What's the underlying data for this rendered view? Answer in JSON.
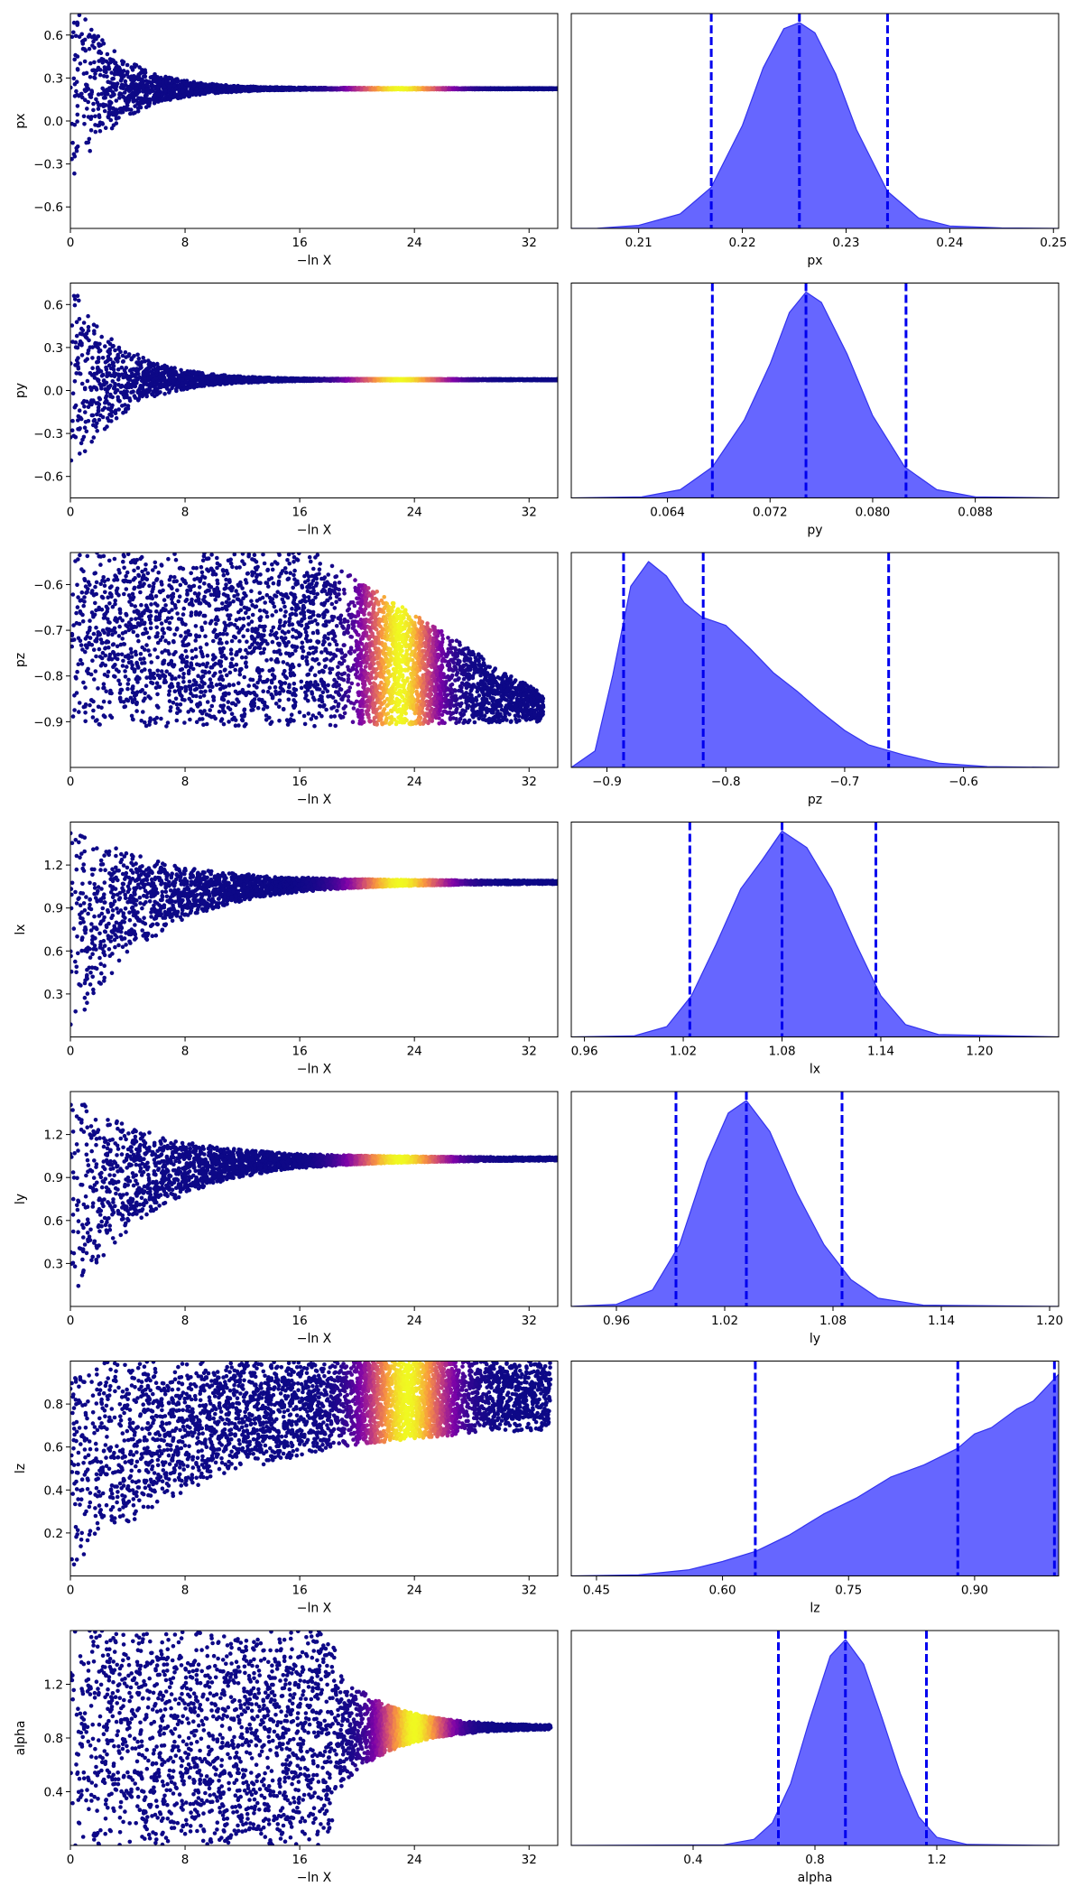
{
  "chart_data": {
    "type": "trace_plot",
    "x_label_trace": "−ln X",
    "x_ticks_trace": [
      0,
      8,
      16,
      24,
      32
    ],
    "x_range_trace": [
      0,
      34
    ],
    "colors": {
      "kde_fill": "#6666ff",
      "kde_line": "#3333ee",
      "quantile_line": "#0000ee",
      "scatter_low": "#0d0887",
      "scatter_high": "#f0f921"
    },
    "panels": [
      {
        "name": "px",
        "trace_ylim": [
          -0.75,
          0.75
        ],
        "trace_yticks": [
          "-0.6",
          "-0.3",
          "0.0",
          "0.3",
          "0.6"
        ],
        "trace_ytick_values": [
          -0.6,
          -0.3,
          0.0,
          0.3,
          0.6
        ],
        "trace_shape": {
          "type": "funnel",
          "final": 0.225,
          "width0": 1.4,
          "rate": 0.32,
          "bright": [
            19,
            27
          ]
        },
        "kde_xlim": [
          0.2035,
          0.2505
        ],
        "kde_xticks": [
          "0.21",
          "0.22",
          "0.23",
          "0.24",
          "0.25"
        ],
        "kde_xtick_values": [
          0.21,
          0.22,
          0.23,
          0.24,
          0.25
        ],
        "kde_points": [
          [
            0.2035,
            0.0
          ],
          [
            0.206,
            0.001
          ],
          [
            0.21,
            0.015
          ],
          [
            0.214,
            0.07
          ],
          [
            0.217,
            0.2
          ],
          [
            0.22,
            0.5
          ],
          [
            0.222,
            0.78
          ],
          [
            0.224,
            0.97
          ],
          [
            0.2255,
            1.0
          ],
          [
            0.227,
            0.95
          ],
          [
            0.229,
            0.75
          ],
          [
            0.231,
            0.48
          ],
          [
            0.234,
            0.18
          ],
          [
            0.237,
            0.05
          ],
          [
            0.24,
            0.012
          ],
          [
            0.245,
            0.002
          ],
          [
            0.2505,
            0.0
          ]
        ],
        "quantiles": [
          0.217,
          0.2255,
          0.234
        ]
      },
      {
        "name": "py",
        "trace_ylim": [
          -0.75,
          0.75
        ],
        "trace_yticks": [
          "-0.6",
          "-0.3",
          "0.0",
          "0.3",
          "0.6"
        ],
        "trace_ytick_values": [
          -0.6,
          -0.3,
          0.0,
          0.3,
          0.6
        ],
        "trace_shape": {
          "type": "funnel",
          "final": 0.075,
          "width0": 1.4,
          "rate": 0.3,
          "bright": [
            19,
            27
          ]
        },
        "kde_xlim": [
          0.0565,
          0.0945
        ],
        "kde_xticks": [
          "0.064",
          "0.072",
          "0.080",
          "0.088"
        ],
        "kde_xtick_values": [
          0.064,
          0.072,
          0.08,
          0.088
        ],
        "kde_points": [
          [
            0.0565,
            0.0
          ],
          [
            0.062,
            0.005
          ],
          [
            0.065,
            0.04
          ],
          [
            0.0675,
            0.15
          ],
          [
            0.07,
            0.38
          ],
          [
            0.072,
            0.65
          ],
          [
            0.0735,
            0.9
          ],
          [
            0.0748,
            1.0
          ],
          [
            0.076,
            0.95
          ],
          [
            0.078,
            0.7
          ],
          [
            0.08,
            0.4
          ],
          [
            0.0825,
            0.15
          ],
          [
            0.085,
            0.04
          ],
          [
            0.088,
            0.005
          ],
          [
            0.0945,
            0.0
          ]
        ],
        "quantiles": [
          0.0675,
          0.0748,
          0.0826
        ]
      },
      {
        "name": "pz",
        "trace_ylim": [
          -1.0,
          -0.53
        ],
        "trace_yticks": [
          "-0.9",
          "-0.8",
          "-0.7",
          "-0.6"
        ],
        "trace_ytick_values": [
          -0.9,
          -0.8,
          -0.7,
          -0.6
        ],
        "trace_shape": {
          "type": "band",
          "lo": -0.91,
          "hi": -0.53,
          "lo_end": -0.9,
          "hi_end": -0.84,
          "cut": 17,
          "end": 33,
          "bright": [
            20,
            26
          ]
        },
        "kde_xlim": [
          -0.93,
          -0.52
        ],
        "kde_xticks": [
          "-0.9",
          "-0.8",
          "-0.7",
          "-0.6"
        ],
        "kde_xtick_values": [
          -0.9,
          -0.8,
          -0.7,
          -0.6
        ],
        "kde_points": [
          [
            -0.93,
            0.0
          ],
          [
            -0.91,
            0.08
          ],
          [
            -0.895,
            0.45
          ],
          [
            -0.88,
            0.88
          ],
          [
            -0.865,
            1.0
          ],
          [
            -0.85,
            0.93
          ],
          [
            -0.835,
            0.8
          ],
          [
            -0.82,
            0.73
          ],
          [
            -0.8,
            0.69
          ],
          [
            -0.78,
            0.58
          ],
          [
            -0.76,
            0.46
          ],
          [
            -0.74,
            0.37
          ],
          [
            -0.72,
            0.27
          ],
          [
            -0.7,
            0.18
          ],
          [
            -0.68,
            0.11
          ],
          [
            -0.65,
            0.06
          ],
          [
            -0.62,
            0.02
          ],
          [
            -0.58,
            0.004
          ],
          [
            -0.52,
            0.0
          ]
        ],
        "quantiles": [
          -0.886,
          -0.819,
          -0.663
        ]
      },
      {
        "name": "lx",
        "trace_ylim": [
          0.0,
          1.5
        ],
        "trace_yticks": [
          "0.3",
          "0.6",
          "0.9",
          "1.2"
        ],
        "trace_ytick_values": [
          0.3,
          0.6,
          0.9,
          1.2
        ],
        "trace_shape": {
          "type": "converge",
          "final": 1.08,
          "hi0": 1.5,
          "lo0": 0.02,
          "rate": 0.18,
          "bright": [
            19,
            27
          ]
        },
        "kde_xlim": [
          0.952,
          1.248
        ],
        "kde_xticks": [
          "0.96",
          "1.02",
          "1.08",
          "1.14",
          "1.20"
        ],
        "kde_xtick_values": [
          0.96,
          1.02,
          1.08,
          1.14,
          1.2
        ],
        "kde_points": [
          [
            0.952,
            0.0
          ],
          [
            0.99,
            0.005
          ],
          [
            1.01,
            0.05
          ],
          [
            1.025,
            0.2
          ],
          [
            1.04,
            0.45
          ],
          [
            1.055,
            0.72
          ],
          [
            1.068,
            0.86
          ],
          [
            1.08,
            1.0
          ],
          [
            1.095,
            0.92
          ],
          [
            1.11,
            0.72
          ],
          [
            1.125,
            0.45
          ],
          [
            1.14,
            0.2
          ],
          [
            1.155,
            0.06
          ],
          [
            1.175,
            0.012
          ],
          [
            1.248,
            0.0
          ]
        ],
        "quantiles": [
          1.024,
          1.08,
          1.137
        ]
      },
      {
        "name": "ly",
        "trace_ylim": [
          0.0,
          1.5
        ],
        "trace_yticks": [
          "0.3",
          "0.6",
          "0.9",
          "1.2"
        ],
        "trace_ytick_values": [
          0.3,
          0.6,
          0.9,
          1.2
        ],
        "trace_shape": {
          "type": "converge",
          "final": 1.03,
          "hi0": 1.5,
          "lo0": 0.02,
          "rate": 0.18,
          "bright": [
            19,
            27
          ]
        },
        "kde_xlim": [
          0.935,
          1.205
        ],
        "kde_xticks": [
          "0.96",
          "1.02",
          "1.08",
          "1.14",
          "1.20"
        ],
        "kde_xtick_values": [
          0.96,
          1.02,
          1.08,
          1.14,
          1.2
        ],
        "kde_points": [
          [
            0.935,
            0.0
          ],
          [
            0.96,
            0.01
          ],
          [
            0.98,
            0.08
          ],
          [
            0.995,
            0.3
          ],
          [
            1.01,
            0.7
          ],
          [
            1.022,
            0.94
          ],
          [
            1.032,
            1.0
          ],
          [
            1.045,
            0.85
          ],
          [
            1.06,
            0.55
          ],
          [
            1.075,
            0.3
          ],
          [
            1.09,
            0.13
          ],
          [
            1.105,
            0.04
          ],
          [
            1.13,
            0.006
          ],
          [
            1.205,
            0.0
          ]
        ],
        "quantiles": [
          0.993,
          1.032,
          1.085
        ]
      },
      {
        "name": "lz",
        "trace_ylim": [
          0.0,
          1.0
        ],
        "trace_yticks": [
          "0.2",
          "0.4",
          "0.6",
          "0.8"
        ],
        "trace_ytick_values": [
          0.2,
          0.4,
          0.6,
          0.8
        ],
        "trace_shape": {
          "type": "wedge",
          "hi0": 1.0,
          "lo0": 0.02,
          "lo_end": 0.68,
          "cut": 34,
          "end": 33.5,
          "bright": [
            20,
            27
          ]
        },
        "kde_xlim": [
          0.42,
          1.0
        ],
        "kde_xticks": [
          "0.45",
          "0.60",
          "0.75",
          "0.90"
        ],
        "kde_xtick_values": [
          0.45,
          0.6,
          0.75,
          0.9
        ],
        "kde_points": [
          [
            0.42,
            0.0
          ],
          [
            0.5,
            0.005
          ],
          [
            0.56,
            0.03
          ],
          [
            0.6,
            0.07
          ],
          [
            0.64,
            0.12
          ],
          [
            0.68,
            0.2
          ],
          [
            0.72,
            0.3
          ],
          [
            0.76,
            0.38
          ],
          [
            0.8,
            0.48
          ],
          [
            0.84,
            0.54
          ],
          [
            0.88,
            0.62
          ],
          [
            0.9,
            0.69
          ],
          [
            0.92,
            0.72
          ],
          [
            0.95,
            0.81
          ],
          [
            0.97,
            0.85
          ],
          [
            1.0,
            0.98
          ]
        ],
        "quantiles": [
          0.639,
          0.88,
          0.995
        ]
      },
      {
        "name": "alpha",
        "trace_ylim": [
          0.0,
          1.6
        ],
        "trace_yticks": [
          "0.4",
          "0.8",
          "1.2"
        ],
        "trace_ytick_values": [
          0.4,
          0.8,
          1.2
        ],
        "trace_shape": {
          "type": "band_converge",
          "lo": 0.0,
          "hi": 1.6,
          "final": 0.88,
          "cut": 18.5,
          "end": 33.5,
          "bright": [
            21,
            27
          ]
        },
        "kde_xlim": [
          0.0,
          1.6
        ],
        "kde_xticks": [
          "0.4",
          "0.8",
          "1.2"
        ],
        "kde_xtick_values": [
          0.4,
          0.8,
          1.2
        ],
        "kde_points": [
          [
            0.0,
            0.0
          ],
          [
            0.5,
            0.003
          ],
          [
            0.6,
            0.03
          ],
          [
            0.66,
            0.11
          ],
          [
            0.72,
            0.3
          ],
          [
            0.78,
            0.6
          ],
          [
            0.85,
            0.92
          ],
          [
            0.9,
            1.0
          ],
          [
            0.96,
            0.88
          ],
          [
            1.02,
            0.62
          ],
          [
            1.08,
            0.35
          ],
          [
            1.14,
            0.14
          ],
          [
            1.2,
            0.04
          ],
          [
            1.3,
            0.005
          ],
          [
            1.6,
            0.0
          ]
        ],
        "quantiles": [
          0.68,
          0.9,
          1.166
        ]
      }
    ]
  }
}
